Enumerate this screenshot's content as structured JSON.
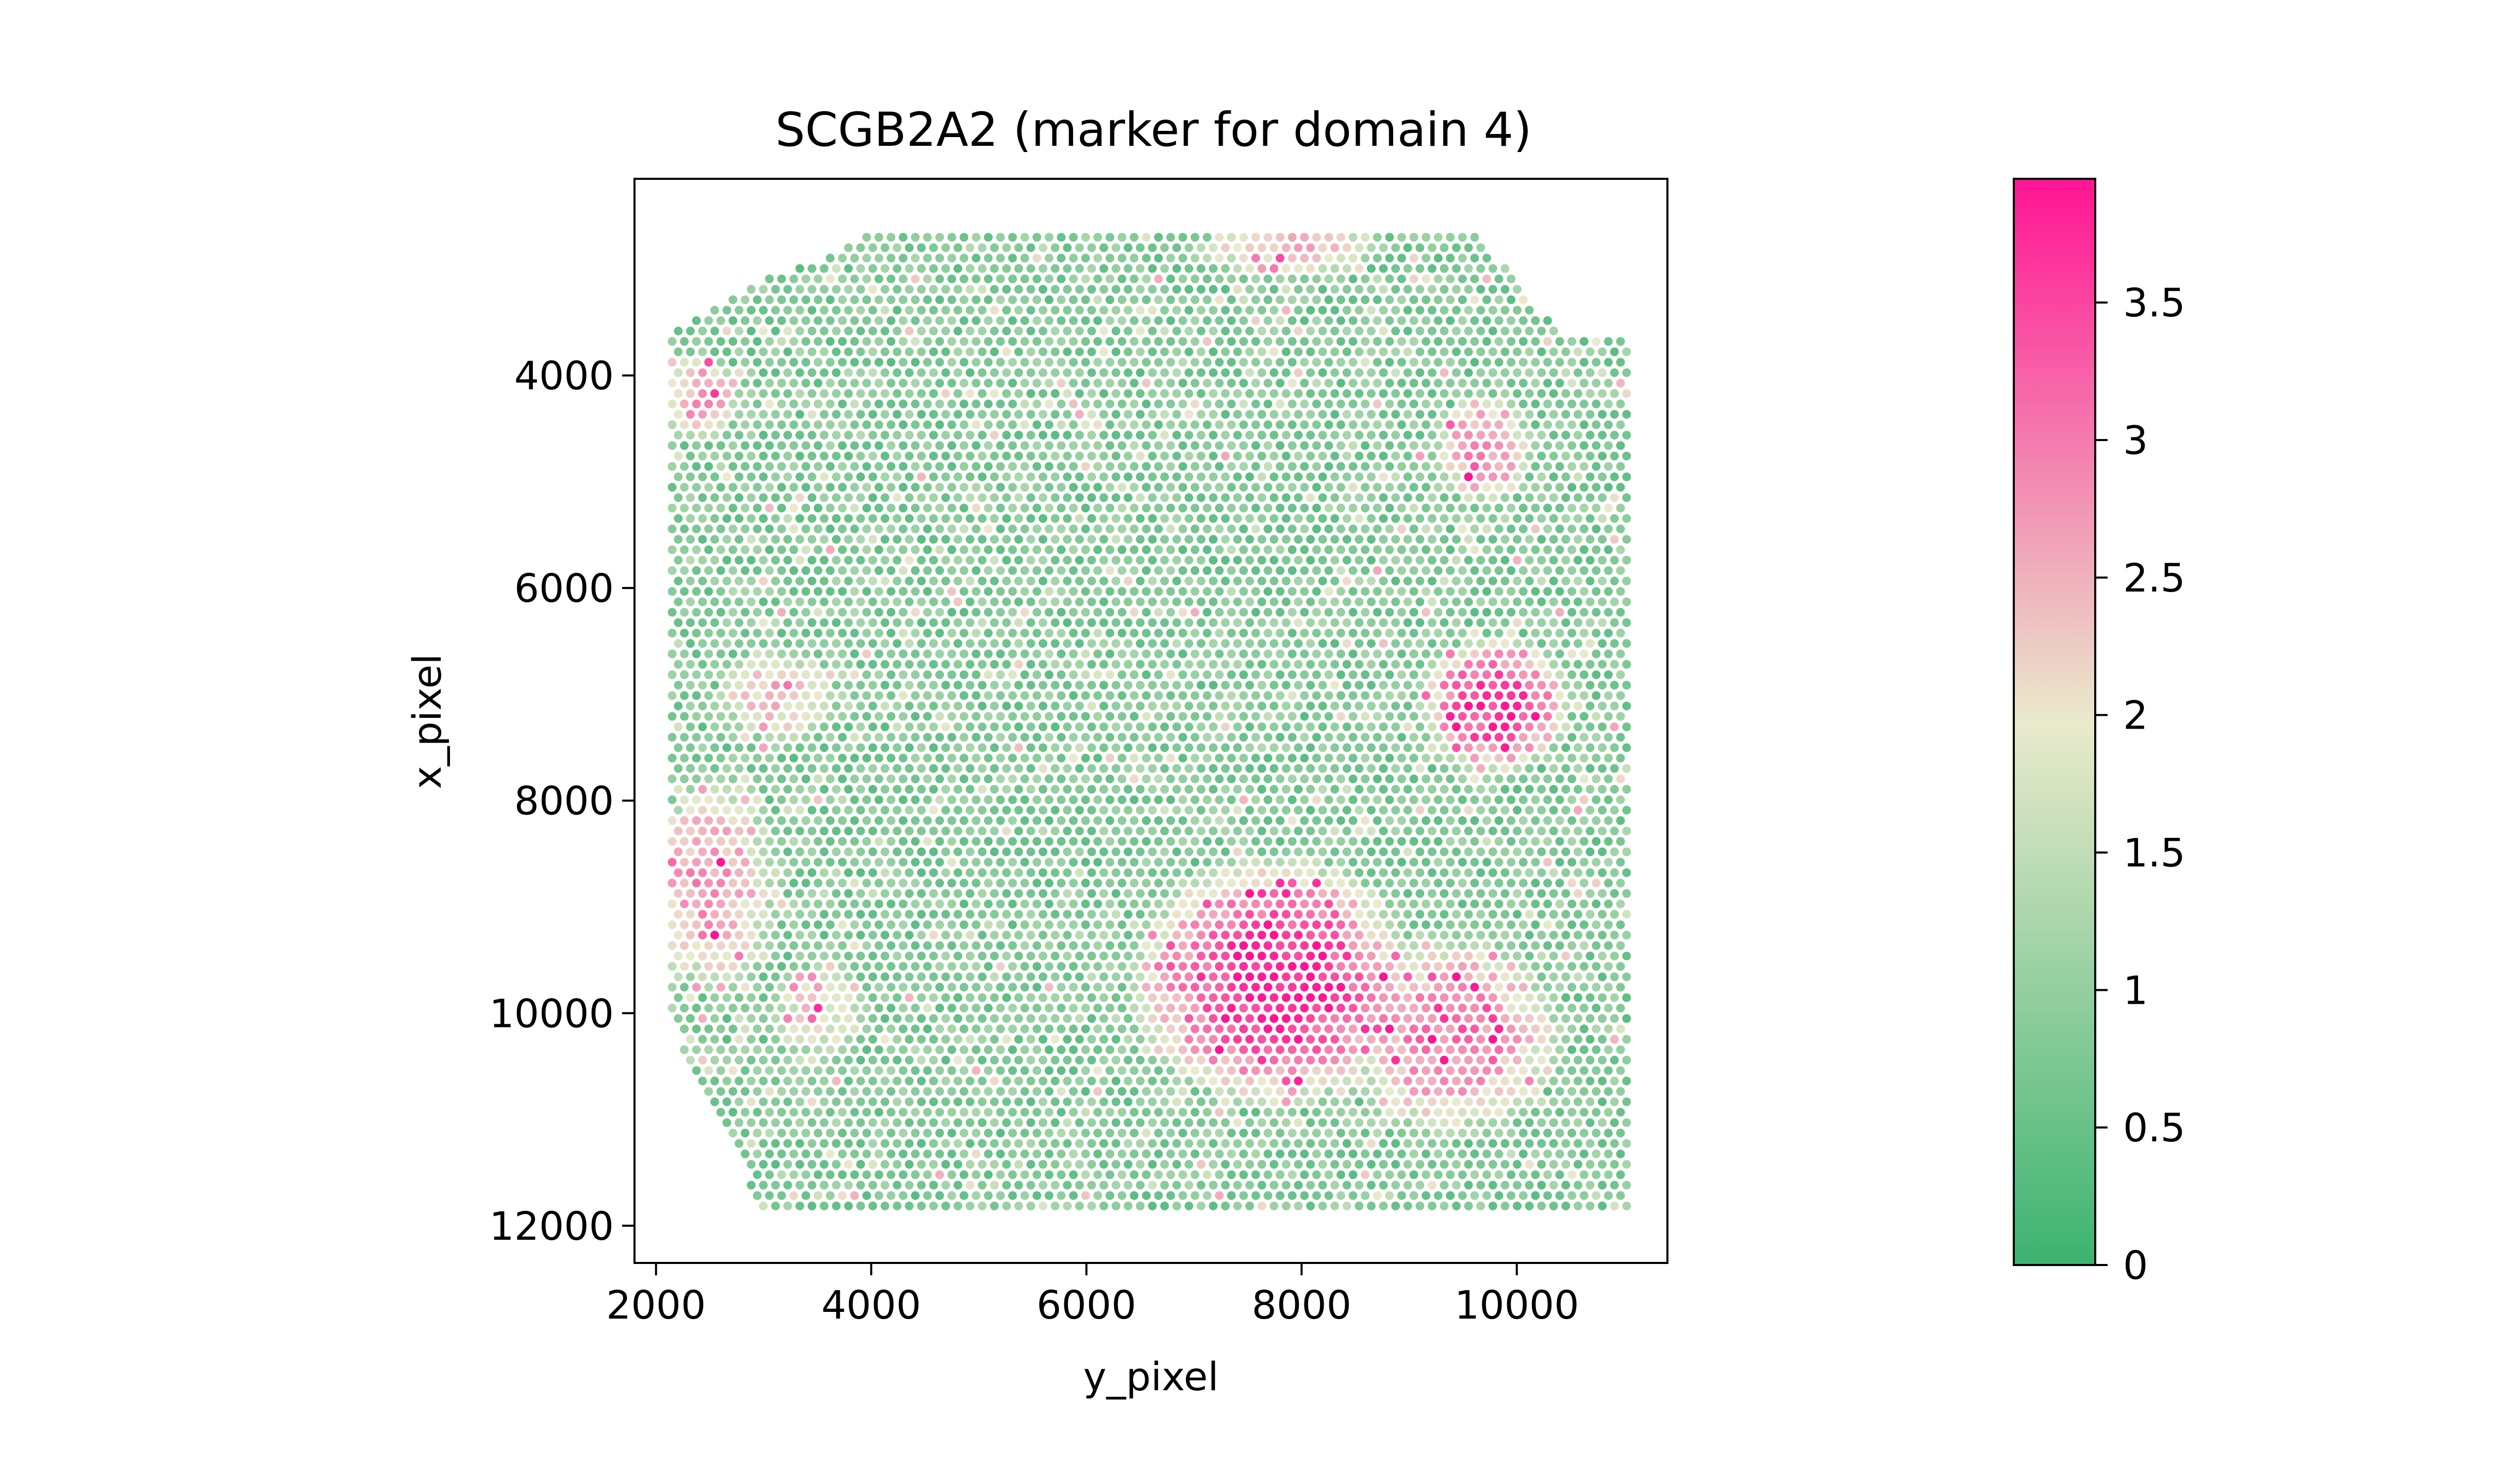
{
  "chart_data": {
    "type": "scatter",
    "title": "SCGB2A2 (marker for domain 4)",
    "xlabel": "y_pixel",
    "ylabel": "x_pixel",
    "xlim": [
      1800,
      11400
    ],
    "ylim": [
      12350,
      2150
    ],
    "y_inverted": true,
    "x_ticks": [
      2000,
      4000,
      6000,
      8000,
      10000
    ],
    "x_tick_labels": [
      "2000",
      "4000",
      "6000",
      "8000",
      "10000"
    ],
    "y_ticks": [
      4000,
      6000,
      8000,
      10000,
      12000
    ],
    "y_tick_labels": [
      "4000",
      "6000",
      "8000",
      "10000",
      "12000"
    ],
    "grid": false,
    "colorbar": {
      "min": 0,
      "max": 3.95,
      "ticks": [
        0,
        0.5,
        1,
        1.5,
        2,
        2.5,
        3,
        3.5
      ],
      "tick_labels": [
        "0",
        "0.5",
        "1",
        "1.5",
        "2",
        "2.5",
        "3",
        "3.5"
      ],
      "colors": [
        "#3cb371",
        "#eaeacc",
        "#ff1493"
      ],
      "placement": "right"
    },
    "point_grid": {
      "x_start": 2150,
      "x_end": 11050,
      "y_start": 2700,
      "y_end": 11900,
      "dx": 113,
      "dy": 98,
      "hex_offset": true
    },
    "tissue_outline": [
      [
        3950,
        2700
      ],
      [
        9650,
        2700
      ],
      [
        9900,
        3000
      ],
      [
        10200,
        3400
      ],
      [
        10550,
        3650
      ],
      [
        11050,
        3650
      ],
      [
        11050,
        11900
      ],
      [
        2950,
        11900
      ],
      [
        2800,
        11350
      ],
      [
        2450,
        10750
      ],
      [
        2150,
        10100
      ],
      [
        2150,
        3550
      ],
      [
        2400,
        3450
      ],
      [
        2850,
        3150
      ],
      [
        3450,
        2950
      ]
    ],
    "expression_regions": [
      {
        "cx": 7750,
        "cy": 9700,
        "rx": 1400,
        "ry": 1250,
        "value": 3.7
      },
      {
        "cx": 9400,
        "cy": 10200,
        "rx": 1100,
        "ry": 1000,
        "value": 2.9
      },
      {
        "cx": 9800,
        "cy": 7100,
        "rx": 750,
        "ry": 700,
        "value": 3.5
      },
      {
        "cx": 9700,
        "cy": 4700,
        "rx": 500,
        "ry": 550,
        "value": 2.8
      },
      {
        "cx": 2400,
        "cy": 4200,
        "rx": 400,
        "ry": 450,
        "value": 2.6
      },
      {
        "cx": 2500,
        "cy": 8800,
        "rx": 700,
        "ry": 1100,
        "value": 2.6
      },
      {
        "cx": 3100,
        "cy": 7000,
        "rx": 600,
        "ry": 500,
        "value": 2.3
      },
      {
        "cx": 7900,
        "cy": 2800,
        "rx": 1000,
        "ry": 300,
        "value": 2.2
      },
      {
        "cx": 3500,
        "cy": 10000,
        "rx": 500,
        "ry": 500,
        "value": 2.0
      }
    ],
    "base_value": 0.35
  }
}
